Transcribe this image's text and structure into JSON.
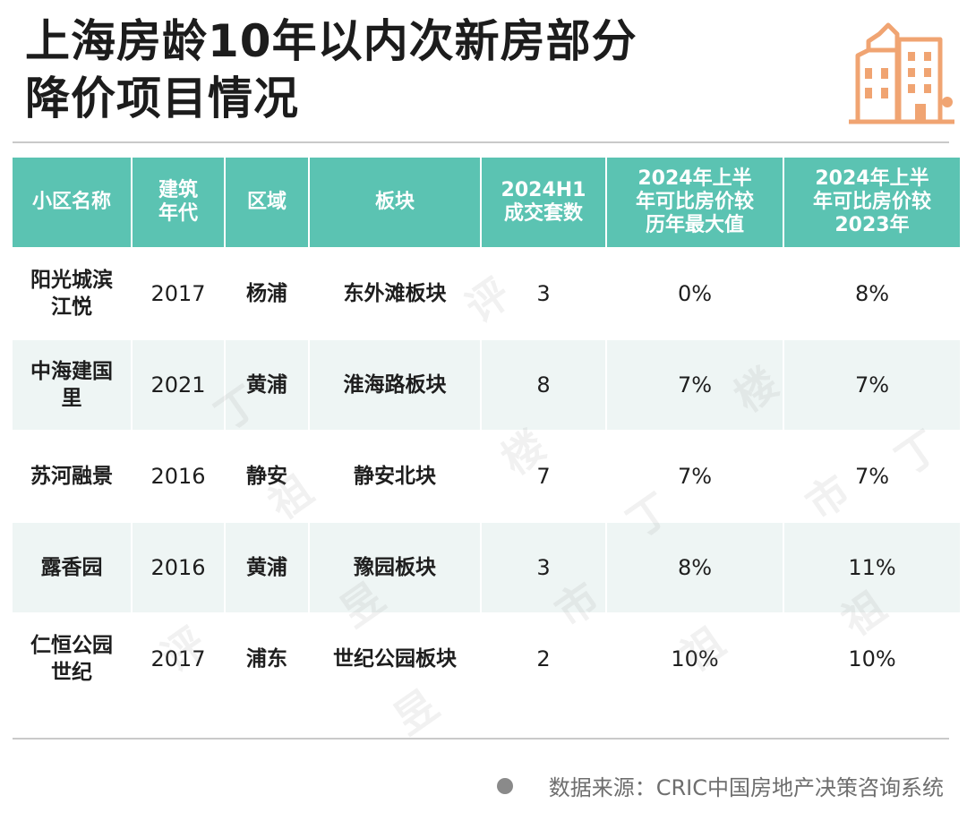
{
  "title": {
    "line1": "上海房龄10年以内次新房部分",
    "line2": "降价项目情况"
  },
  "logo_icon": "buildings-icon",
  "accent_color": "#5bc3b2",
  "icon_color": "#f0a472",
  "table": {
    "headers": [
      "小区名称",
      "建筑年代",
      "区域",
      "板块",
      "2024H1成交套数",
      "2024年上半年可比房价较历年最大值",
      "2024年上半年可比房价较2023年"
    ],
    "header_lines": [
      [
        "小区名称"
      ],
      [
        "建筑",
        "年代"
      ],
      [
        "区域"
      ],
      [
        "板块"
      ],
      [
        "2024H1",
        "成交套数"
      ],
      [
        "2024年上半",
        "年可比房价较",
        "历年最大值"
      ],
      [
        "2024年上半",
        "年可比房价较",
        "2023年"
      ]
    ],
    "rows": [
      {
        "name_lines": [
          "阳光城滨",
          "江悦"
        ],
        "year": "2017",
        "district": "杨浦",
        "block": "东外滩板块",
        "deals": "3",
        "vs_max": "0%",
        "vs_2023": "8%"
      },
      {
        "name_lines": [
          "中海建国",
          "里"
        ],
        "year": "2021",
        "district": "黄浦",
        "block": "淮海路板块",
        "deals": "8",
        "vs_max": "7%",
        "vs_2023": "7%"
      },
      {
        "name_lines": [
          "苏河融景"
        ],
        "year": "2016",
        "district": "静安",
        "block": "静安北块",
        "deals": "7",
        "vs_max": "7%",
        "vs_2023": "7%"
      },
      {
        "name_lines": [
          "露香园"
        ],
        "year": "2016",
        "district": "黄浦",
        "block": "豫园板块",
        "deals": "3",
        "vs_max": "8%",
        "vs_2023": "11%"
      },
      {
        "name_lines": [
          "仁恒公园",
          "世纪"
        ],
        "year": "2017",
        "district": "浦东",
        "block": "世纪公园板块",
        "deals": "2",
        "vs_max": "10%",
        "vs_2023": "10%"
      }
    ]
  },
  "source": "数据来源：CRIC中国房地产决策咨询系统",
  "watermark": [
    "丁",
    "祖",
    "昱",
    "评",
    "楼",
    "市"
  ]
}
